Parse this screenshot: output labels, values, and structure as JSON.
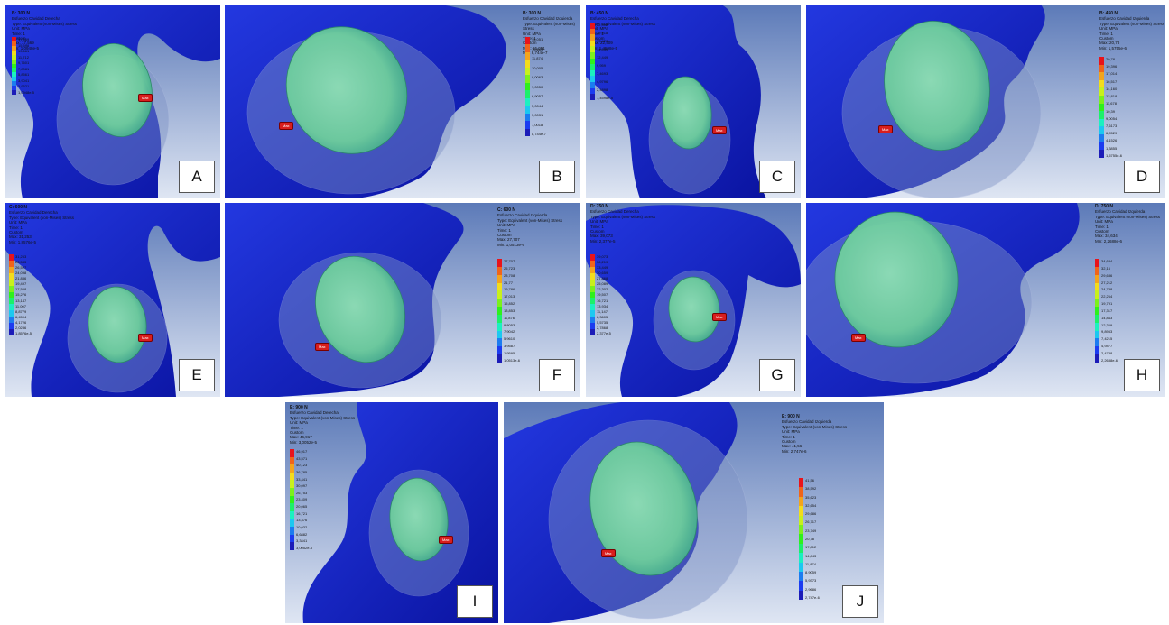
{
  "colors": {
    "bone": "#1c2fd6",
    "bone_dark": "#0a13a0",
    "bg_top": "#5c7ab8",
    "bg_bottom": "#dfe6f3",
    "cartilage": "#6fcf9d",
    "max_tag": "#d81e1e"
  },
  "legend_colors": [
    "#e8131b",
    "#f0641a",
    "#f3a41c",
    "#f3dc1c",
    "#c8f01c",
    "#7cf01c",
    "#2ff01c",
    "#1cf06a",
    "#1cf0c0",
    "#1cc8f0",
    "#1c7cf0",
    "#1c3cf0",
    "#1c1cb8"
  ],
  "panels": [
    {
      "id": "A",
      "letter": "A",
      "info": [
        "B: 300 N",
        "Esfuerzo Cavidad Derecha",
        "Type: Equivalent (von-Mises) Stress",
        "Unit: MPa",
        "Time: 1",
        "Custom",
        "Max: 17,569",
        "Min: 1,0948e-5"
      ],
      "ticks": [
        "17,569",
        "15,598",
        "13,661",
        "11,712",
        "9,7601",
        "7,8081",
        "5,8561",
        "3,9041",
        "1,9521",
        "1,0948e-5"
      ],
      "max_label": "Max"
    },
    {
      "id": "B",
      "letter": "B",
      "info": [
        "B: 300 N",
        "Esfuerzo Cavidad Izquierda",
        "Type: Equivalent (von-Mises) Stress",
        "Unit: MPa",
        "Time: 1",
        "Custom",
        "Max: 15,051",
        "Min: 8,744e-7"
      ],
      "ticks": [
        "15,051",
        "13,669",
        "11,874",
        "10,005",
        "8,0063",
        "7,0050",
        "6,9057",
        "5,0044",
        "3,0031",
        "1,0018",
        "8,744e-7"
      ],
      "max_label": "Max"
    },
    {
      "id": "C",
      "letter": "C",
      "info": [
        "B: 450 N",
        "Esfuerzo Cavidad Derecha",
        "Type: Equivalent (von-Mises) Stress",
        "Unit: MPa",
        "Time: 1",
        "Custom",
        "Max: 22,409",
        "Min: 1,4598e-5"
      ],
      "ticks": [
        "22,409",
        "19,918",
        "17,428",
        "14,939",
        "12,449",
        "9,959",
        "7,4693",
        "4,9796",
        "2,4898",
        "1,4598e-5"
      ],
      "max_label": "Max"
    },
    {
      "id": "D",
      "letter": "D",
      "info": [
        "B: 450 N",
        "Esfuerzo Cavidad Izquierda",
        "Type: Equivalent (von-Mises) Stress",
        "Unit: MPa",
        "Time: 1",
        "Custom",
        "Max: 20,78",
        "Min: 1,5755e-6"
      ],
      "ticks": [
        "20,78",
        "19,396",
        "17,014",
        "16,517",
        "14,160",
        "12,818",
        "11,678",
        "10,39",
        "9,0054",
        "7,6173",
        "6,9529",
        "4,1526",
        "1,3855",
        "1,5755e-6"
      ],
      "max_label": "Max"
    },
    {
      "id": "E",
      "letter": "E",
      "info": [
        "C: 600 N",
        "Esfuerzo Cavidad Derecha",
        "Type: Equivalent (von-Mises) Stress",
        "Unit: MPa",
        "Time: 1",
        "Custom",
        "Max: 31,253",
        "Min: 1,8576e-5"
      ],
      "ticks": [
        "31,253",
        "28,583",
        "26,527",
        "24,098",
        "21,886",
        "19,497",
        "17,508",
        "15,276",
        "13,147",
        "11,007",
        "8,8779",
        "6,4504",
        "4,1726",
        "2,0286",
        "1,8576e-5"
      ],
      "max_label": "Max"
    },
    {
      "id": "F",
      "letter": "F",
      "info": [
        "C: 600 N",
        "Esfuerzo Cavidad Izquierda",
        "Type: Equivalent (von-Mises) Stress",
        "Unit: MPa",
        "Time: 1",
        "Custom",
        "Max: 27,707",
        "Min: 1,0513e-6"
      ],
      "ticks": [
        "27,707",
        "25,723",
        "23,708",
        "21,77",
        "19,786",
        "17,013",
        "15,852",
        "13,853",
        "11,876",
        "9,8053",
        "7,9042",
        "5,9610",
        "3,9587",
        "1,9595",
        "1,0513e-6"
      ],
      "max_label": "Max"
    },
    {
      "id": "G",
      "letter": "G",
      "info": [
        "D: 750 N",
        "Esfuerzo Cavidad Derecha",
        "Type: Equivalent (von-Mises) Stress",
        "Unit: MPa",
        "Time: 1",
        "Custom",
        "Max: 39,073",
        "Min: 2,377e-5"
      ],
      "ticks": [
        "39,073",
        "36,219",
        "33,449",
        "30,659",
        "27,868",
        "25,089",
        "22,302",
        "19,507",
        "16,721",
        "13,934",
        "11,147",
        "8,3605",
        "5,5735",
        "2,7868",
        "2,377e-5"
      ],
      "max_label": "Max"
    },
    {
      "id": "H",
      "letter": "H",
      "info": [
        "D: 750 N",
        "Esfuerzo Cavidad Izquierda",
        "Type: Equivalent (von-Mises) Stress",
        "Unit: MPa",
        "Time: 1",
        "Custom",
        "Max: 34,634",
        "Min: 2,2688e-6"
      ],
      "ticks": [
        "34,634",
        "32,16",
        "29,686",
        "27,212",
        "24,738",
        "22,264",
        "19,791",
        "17,317",
        "14,843",
        "12,369",
        "9,8953",
        "7,4215",
        "4,9477",
        "2,4738",
        "2,2688e-6"
      ],
      "max_label": "Max"
    },
    {
      "id": "I",
      "letter": "I",
      "info": [
        "E: 900 N",
        "Esfuerzo Cavidad Derecha",
        "Type: Equivalent (von-Mises) Stress",
        "Unit: MPa",
        "Time: 1",
        "Custom",
        "Max: 46,917",
        "Min: 3,0052e-5"
      ],
      "ticks": [
        "46,917",
        "43,571",
        "40,123",
        "36,785",
        "33,441",
        "30,097",
        "26,753",
        "23,409",
        "20,065",
        "16,721",
        "13,376",
        "10,032",
        "6,6882",
        "3,3441",
        "3,0052e-5"
      ],
      "max_label": "Max"
    },
    {
      "id": "J",
      "letter": "J",
      "info": [
        "E: 900 N",
        "Esfuerzo Cavidad Izquierda",
        "Type: Equivalent (von-Mises) Stress",
        "Unit: MPa",
        "Time: 1",
        "Custom",
        "Max: 41,56",
        "Min: 2,747e-6"
      ],
      "ticks": [
        "41,56",
        "38,592",
        "35,623",
        "32,654",
        "29,686",
        "26,717",
        "23,749",
        "20,78",
        "17,812",
        "14,843",
        "11,874",
        "8,9059",
        "5,9373",
        "2,9686",
        "2,747e-6"
      ],
      "max_label": "Max"
    }
  ]
}
